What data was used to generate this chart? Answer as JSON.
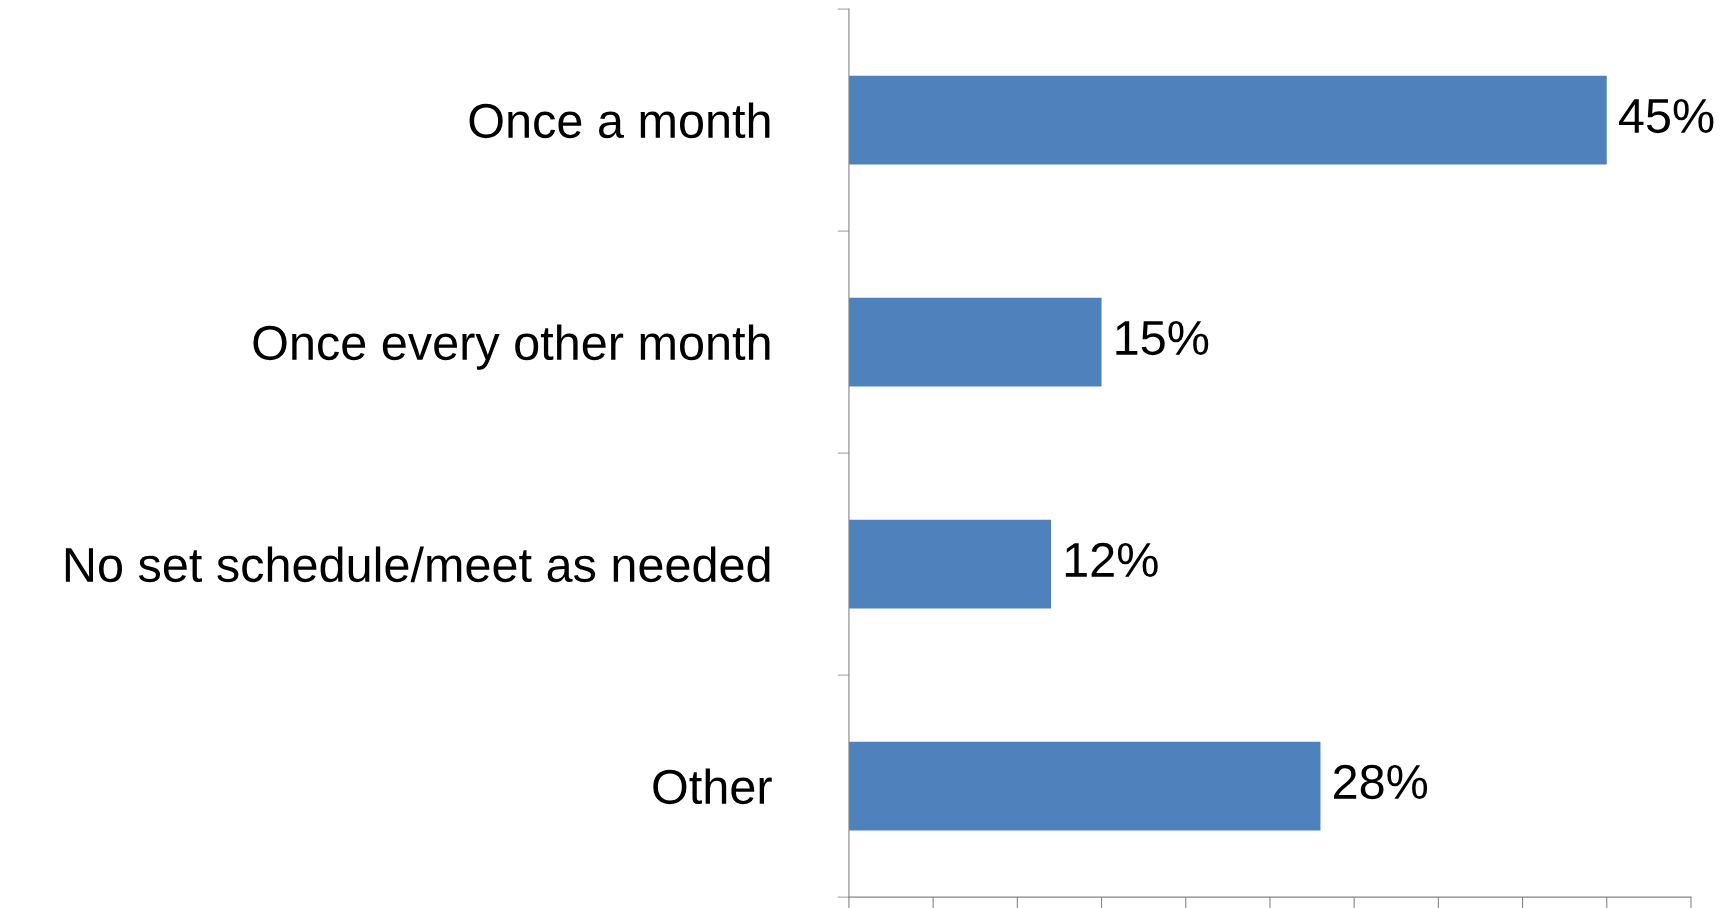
{
  "chart_data": {
    "type": "bar",
    "orientation": "horizontal",
    "categories": [
      "Once a month",
      "Once every other month",
      "No set schedule/meet as needed",
      "Other"
    ],
    "values": [
      45,
      15,
      12,
      28
    ],
    "value_labels": [
      "45%",
      "15%",
      "12%",
      "28%"
    ],
    "color": "#4f81bd",
    "xlim": [
      0,
      50
    ],
    "xticks": [
      {
        "value": 0,
        "label": null
      },
      {
        "value": 5,
        "label": null
      },
      {
        "value": 10,
        "label": null
      },
      {
        "value": 15,
        "label": null
      },
      {
        "value": 20,
        "label": null
      },
      {
        "value": 25,
        "label": null
      },
      {
        "value": 30,
        "label": null
      },
      {
        "value": 35,
        "label": null
      },
      {
        "value": 40,
        "label": null
      },
      {
        "value": 45,
        "label": null
      },
      {
        "value": 50,
        "label": null
      }
    ],
    "tick_labels": "y",
    "grid": false,
    "legend": false
  }
}
